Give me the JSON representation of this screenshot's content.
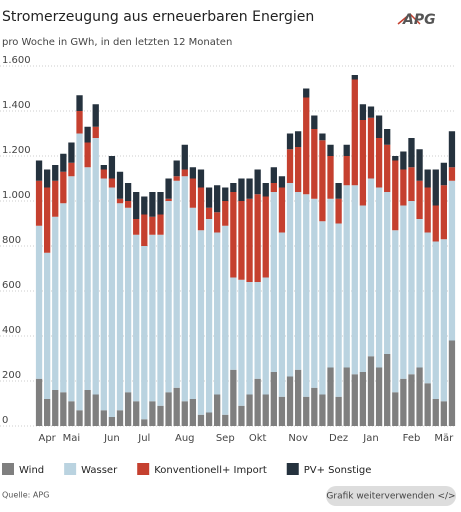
{
  "chart_data": {
    "type": "stacked-bar",
    "title": "Stromerzeugung aus erneuerbaren Energien",
    "subtitle": "pro Woche in GWh, in den letzten 12 Monaten",
    "logo": "APG",
    "source": "Quelle: APG",
    "button": "Grafik weiterverwenden </>",
    "categories": [
      null,
      "Apr",
      null,
      null,
      "Mai",
      null,
      null,
      null,
      null,
      "Jun",
      null,
      null,
      null,
      "Jul",
      null,
      null,
      null,
      null,
      "Aug",
      null,
      null,
      null,
      null,
      "Sep",
      null,
      null,
      null,
      "Okt",
      null,
      null,
      null,
      null,
      "Nov",
      null,
      null,
      null,
      null,
      "Dez",
      null,
      null,
      null,
      "Jan",
      null,
      null,
      null,
      null,
      "Feb",
      null,
      null,
      null,
      "Mär",
      null
    ],
    "series": [
      {
        "name": "Wind",
        "color": "#7f7f7f",
        "values": [
          210,
          120,
          160,
          150,
          110,
          70,
          160,
          140,
          70,
          40,
          70,
          150,
          110,
          30,
          110,
          90,
          150,
          170,
          110,
          120,
          50,
          60,
          140,
          50,
          250,
          90,
          140,
          210,
          140,
          240,
          130,
          220,
          250,
          130,
          170,
          140,
          260,
          130,
          260,
          230,
          240,
          310,
          260,
          320,
          150,
          210,
          230,
          260,
          190,
          120,
          110,
          380
        ]
      },
      {
        "name": "Wasser",
        "color": "#bad3e0",
        "values": [
          680,
          650,
          770,
          840,
          1000,
          1230,
          990,
          1140,
          1030,
          1020,
          920,
          820,
          740,
          770,
          740,
          760,
          850,
          920,
          1000,
          850,
          820,
          860,
          720,
          840,
          410,
          560,
          500,
          430,
          520,
          800,
          730,
          860,
          790,
          900,
          840,
          770,
          750,
          770,
          810,
          840,
          740,
          790,
          800,
          720,
          720,
          770,
          770,
          660,
          670,
          700,
          720,
          710
        ]
      },
      {
        "name": "Konventionell+ Import",
        "color": "#c5402f",
        "values": [
          200,
          290,
          160,
          140,
          60,
          100,
          110,
          50,
          40,
          40,
          20,
          30,
          70,
          140,
          80,
          90,
          10,
          20,
          30,
          130,
          190,
          50,
          90,
          110,
          380,
          350,
          370,
          390,
          360,
          40,
          200,
          150,
          200,
          430,
          310,
          360,
          190,
          110,
          130,
          470,
          380,
          270,
          220,
          210,
          310,
          160,
          150,
          170,
          200,
          160,
          240,
          60
        ]
      },
      {
        "name": "PV+ Sonstige",
        "color": "#25323e",
        "values": [
          90,
          80,
          70,
          80,
          90,
          70,
          70,
          100,
          20,
          100,
          120,
          80,
          120,
          80,
          110,
          100,
          90,
          70,
          110,
          50,
          80,
          90,
          120,
          60,
          40,
          100,
          90,
          110,
          60,
          70,
          50,
          70,
          70,
          40,
          60,
          30,
          50,
          70,
          50,
          20,
          70,
          50,
          100,
          70,
          20,
          80,
          130,
          140,
          80,
          160,
          100,
          160
        ]
      }
    ],
    "ylim": [
      0,
      1600
    ],
    "yticks": [
      0,
      200,
      400,
      600,
      800,
      {
        "value": 1000,
        "label": "1.000"
      },
      {
        "value": 1200,
        "label": "1.200"
      },
      {
        "value": 1400,
        "label": "1.400"
      },
      {
        "value": 1600,
        "label": "1.600"
      }
    ],
    "grid": true
  }
}
